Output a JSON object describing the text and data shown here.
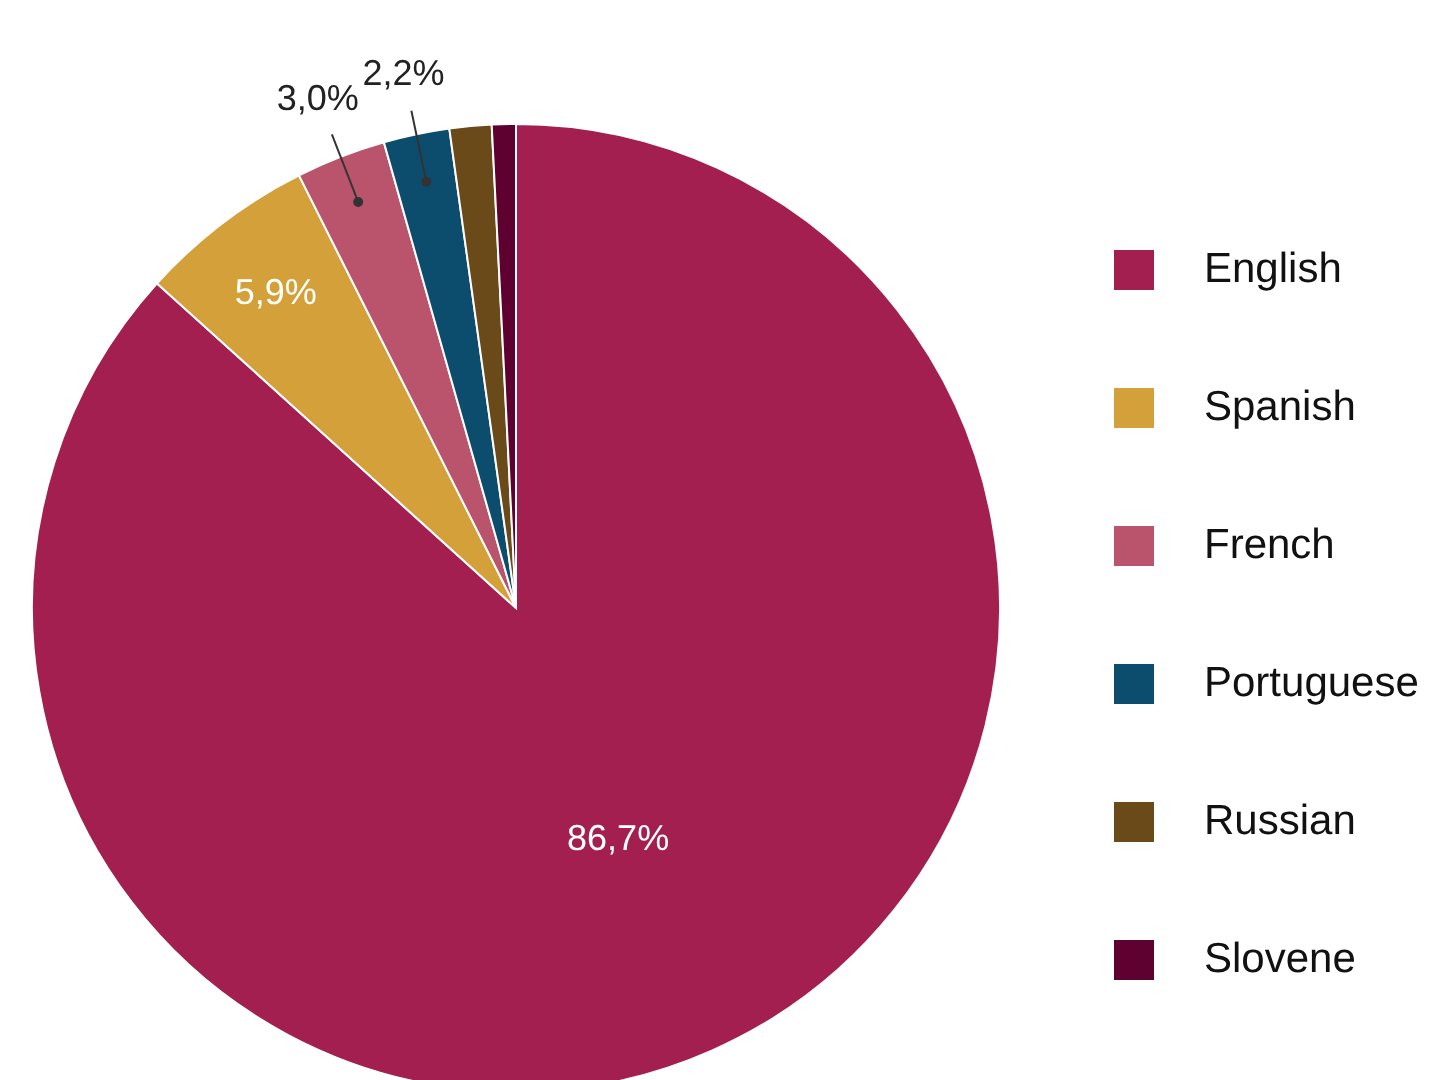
{
  "chart_data": {
    "type": "pie",
    "categories": [
      "English",
      "Spanish",
      "French",
      "Portuguese",
      "Russian",
      "Slovene"
    ],
    "values": [
      86.7,
      5.9,
      3.0,
      2.2,
      1.4,
      0.8
    ],
    "colors": [
      "#a31f4f",
      "#d4a03a",
      "#b9546c",
      "#0c4d6e",
      "#6b4a19",
      "#5e0030"
    ],
    "value_labels": [
      "86,7%",
      "5,9%",
      "3,0%",
      "2,2%",
      null,
      null
    ],
    "legend": "right"
  }
}
